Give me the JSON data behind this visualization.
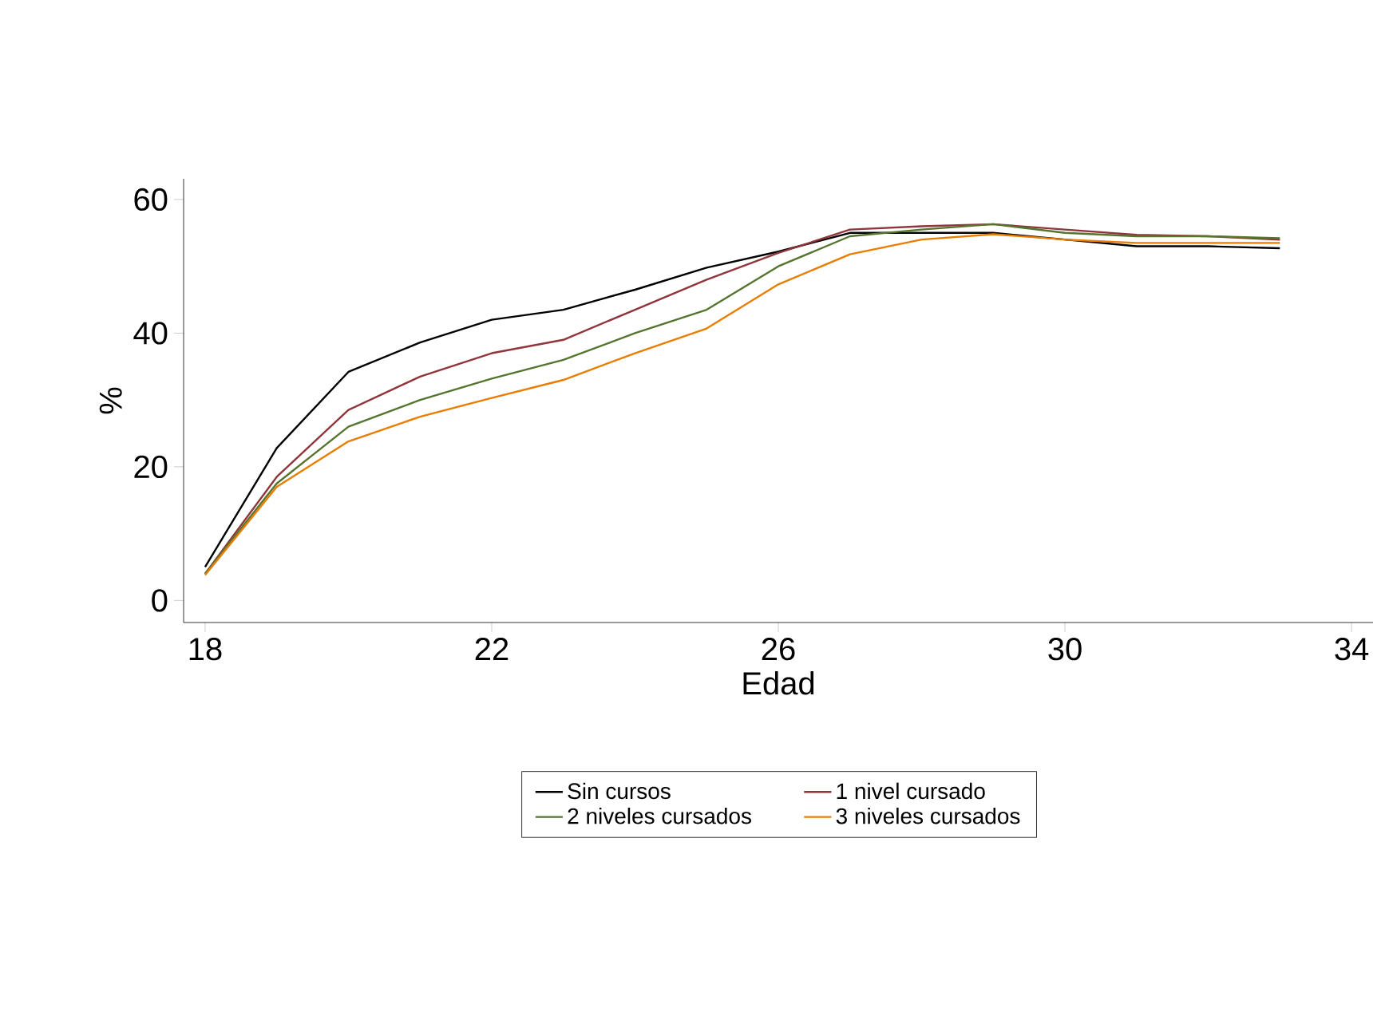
{
  "chart_data": {
    "type": "line",
    "xlabel": "Edad",
    "ylabel": "%",
    "x": [
      18,
      19,
      20,
      21,
      22,
      23,
      24,
      25,
      26,
      27,
      28,
      29,
      30,
      31,
      32,
      33
    ],
    "series": [
      {
        "name": "Sin cursos",
        "color": "#000000",
        "values": [
          5,
          22.8,
          34.2,
          38.6,
          42,
          43.5,
          46.5,
          49.8,
          52.2,
          55,
          55,
          55,
          54,
          53,
          53,
          52.7
        ]
      },
      {
        "name": "1 nivel cursado",
        "color": "#90353b",
        "values": [
          4,
          18.5,
          28.5,
          33.5,
          37,
          39,
          43.5,
          48,
          52,
          55.5,
          56,
          56.3,
          55.5,
          54.7,
          54.5,
          54
        ]
      },
      {
        "name": "2 niveles cursados",
        "color": "#55752f",
        "values": [
          4,
          17.5,
          26,
          30,
          33.2,
          36,
          40,
          43.5,
          50,
          54.5,
          55.5,
          56.3,
          55,
          54.5,
          54.5,
          54.2
        ]
      },
      {
        "name": "3 niveles cursados",
        "color": "#e87d00",
        "values": [
          3.8,
          17,
          23.8,
          27.5,
          30.3,
          33,
          37,
          40.7,
          47.3,
          51.8,
          54,
          54.8,
          54,
          53.5,
          53.5,
          53.5
        ]
      }
    ],
    "xlim": [
      17.7,
      34.3
    ],
    "ylim": [
      -3.3,
      63.1
    ],
    "xticks": [
      18,
      22,
      26,
      30,
      34
    ],
    "yticks": [
      0,
      20,
      40,
      60
    ],
    "grid": false,
    "legend": "bottom",
    "marker": "none",
    "line_style": "solid"
  }
}
